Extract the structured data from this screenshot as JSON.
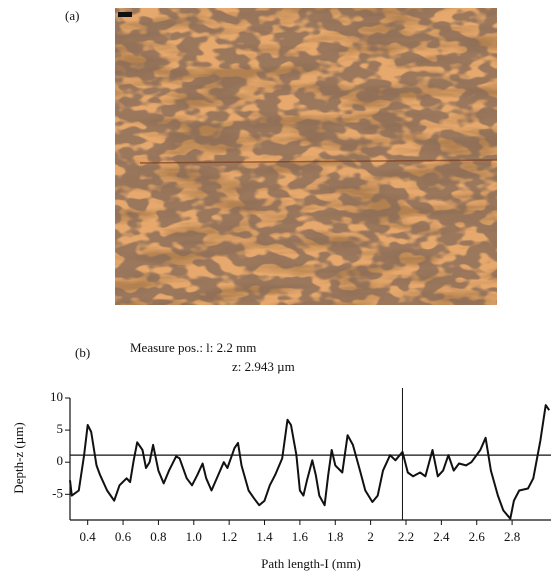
{
  "panel_a": {
    "label": "(a)"
  },
  "chart_data": {
    "type": "line",
    "panel_label": "(b)",
    "annotation": [
      "Measure pos.: l: 2.2 mm",
      "z: 2.943 µm"
    ],
    "xlabel": "Path length-I (mm)",
    "ylabel": "Depth-z (µm)",
    "xlim": [
      0.3,
      3.02
    ],
    "ylim": [
      -9,
      10
    ],
    "xticks": [
      0.4,
      0.6,
      0.8,
      {
        "value": 1,
        "label": "1.0"
      },
      1.2,
      1.4,
      1.6,
      1.8,
      2,
      2.2,
      2.4,
      2.6,
      2.8
    ],
    "yticks": [
      -5,
      0,
      5,
      10
    ],
    "cursor_x": 2.18,
    "reference_y": 1.1,
    "color": "#111111",
    "x": [
      0.3,
      0.31,
      0.35,
      0.38,
      0.4,
      0.42,
      0.45,
      0.47,
      0.51,
      0.55,
      0.58,
      0.62,
      0.64,
      0.66,
      0.68,
      0.71,
      0.73,
      0.75,
      0.77,
      0.8,
      0.83,
      0.86,
      0.9,
      0.92,
      0.96,
      0.99,
      1.02,
      1.05,
      1.07,
      1.1,
      1.14,
      1.17,
      1.19,
      1.23,
      1.25,
      1.27,
      1.31,
      1.34,
      1.37,
      1.4,
      1.43,
      1.46,
      1.5,
      1.53,
      1.55,
      1.58,
      1.6,
      1.62,
      1.64,
      1.67,
      1.69,
      1.71,
      1.74,
      1.76,
      1.78,
      1.8,
      1.84,
      1.87,
      1.9,
      1.94,
      1.97,
      2.01,
      2.04,
      2.07,
      2.11,
      2.14,
      2.18,
      2.21,
      2.24,
      2.28,
      2.31,
      2.35,
      2.38,
      2.41,
      2.44,
      2.47,
      2.5,
      2.54,
      2.57,
      2.62,
      2.65,
      2.68,
      2.72,
      2.75,
      2.79,
      2.81,
      2.84,
      2.89,
      2.92,
      2.96,
      2.99,
      3.01
    ],
    "values": [
      -2.8,
      -5.2,
      -4.4,
      1.1,
      5.8,
      4.7,
      -0.5,
      -2,
      -4.4,
      -6,
      -3.6,
      -2.5,
      -3.1,
      0.3,
      3.1,
      1.9,
      -0.9,
      0,
      2.7,
      -1.3,
      -3.3,
      -1.3,
      0.9,
      0.6,
      -2.5,
      -3.6,
      -2,
      -0.2,
      -2.5,
      -4.4,
      -1.9,
      0,
      -0.9,
      2.2,
      3,
      -0.5,
      -4.4,
      -5.6,
      -6.7,
      -6,
      -3.6,
      -2,
      0.6,
      6.6,
      5.8,
      1.1,
      -4.4,
      -5.2,
      -2.8,
      0.3,
      -2,
      -5.2,
      -6.7,
      -2,
      1.9,
      -0.5,
      -1.6,
      4.2,
      2.7,
      -1.3,
      -4.4,
      -6.2,
      -5.2,
      -1.3,
      1.1,
      0.3,
      1.6,
      -1.6,
      -2.2,
      -1.6,
      -2.2,
      1.9,
      -2.2,
      -1.3,
      1.1,
      -1.3,
      -0.2,
      -0.5,
      0,
      1.9,
      3.8,
      -1.3,
      -5.2,
      -7.5,
      -8.8,
      -6,
      -4.4,
      -4.1,
      -2.5,
      3.4,
      8.9,
      8.1
    ]
  }
}
